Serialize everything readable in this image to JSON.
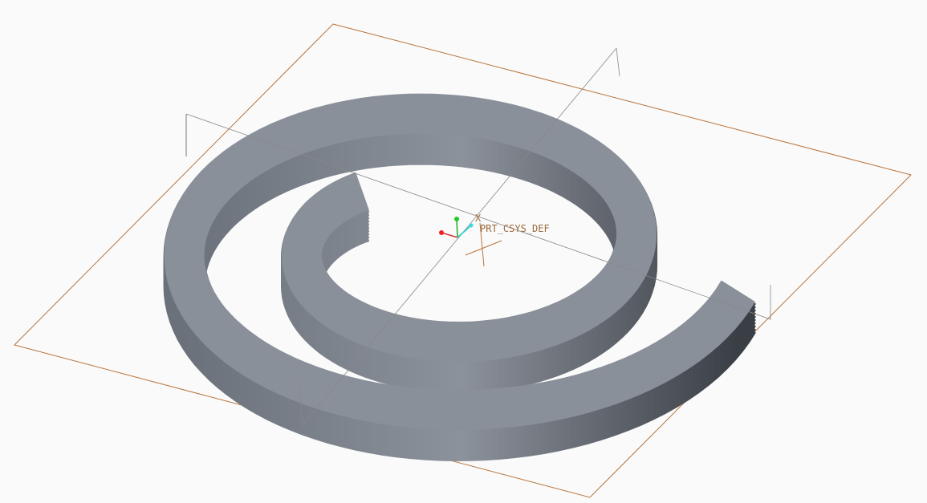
{
  "viewport": {
    "csys_label": "PRT_CSYS_DEF",
    "axis_label": "X"
  }
}
